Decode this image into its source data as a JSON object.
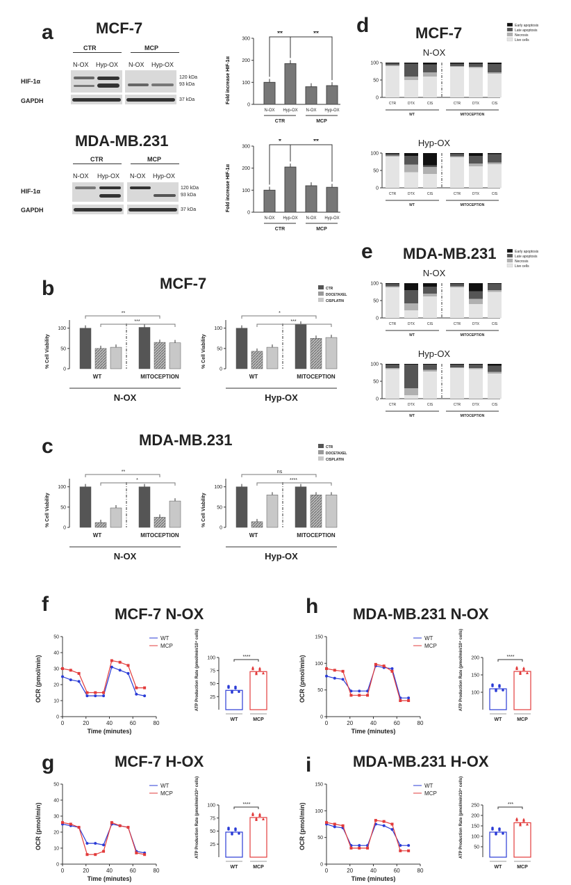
{
  "a": {
    "label": "a",
    "mcf7_title": "MCF-7",
    "mda_title": "MDA-MB.231",
    "ctr": "CTR",
    "mcp": "MCP",
    "lanes": [
      "N-OX",
      "Hyp-OX",
      "N-OX",
      "Hyp-OX"
    ],
    "hif": "HIF-1α",
    "gapdh": "GAPDH",
    "kda120": "120 kDa",
    "kda93": "93 kDa",
    "kda37": "37 kDa",
    "fold_ylabel": "Fold increase HIF-1α",
    "bar_x": [
      "N-OX",
      "Hyp-OX",
      "N-OX",
      "Hyp-OX"
    ],
    "sig_mcf7": [
      "**",
      "**"
    ],
    "sig_mda": [
      "*",
      "**"
    ]
  },
  "b": {
    "label": "b",
    "title": "MCF-7",
    "nox": "N-OX",
    "hypox": "Hyp-OX",
    "wt": "WT",
    "mito": "MITOCEPTION",
    "ylabel": "% Cell Viability",
    "legend": [
      "CTR",
      "DOCETAXEL",
      "CISPLATIN"
    ],
    "sig_nox": [
      "**",
      "***"
    ],
    "sig_hypox": [
      "*",
      "***"
    ]
  },
  "c": {
    "label": "c",
    "title": "MDA-MB.231",
    "nox": "N-OX",
    "hypox": "Hyp-OX",
    "wt": "WT",
    "mito": "MITOCEPTION",
    "ylabel": "% Cell Viability",
    "legend": [
      "CTR",
      "DOCETAXEL",
      "CISPLATIN"
    ],
    "sig_nox": [
      "**",
      "*"
    ],
    "sig_hypox": [
      "ns",
      "****"
    ]
  },
  "d": {
    "label": "d",
    "title": "MCF-7",
    "nox": "N-OX",
    "hypox": "Hyp-OX",
    "legend": [
      "Early apoptosis",
      "Late apoptosis",
      "Necrosis",
      "Live cells"
    ],
    "cats": [
      "CTR",
      "DTX",
      "CIS",
      "CTR",
      "DTX",
      "CIS"
    ],
    "wt": "WT",
    "mito": "MITOCEPTION"
  },
  "e": {
    "label": "e",
    "title": "MDA-MB.231",
    "nox": "N-OX",
    "hypox": "Hyp-OX",
    "legend": [
      "Early apoptosis",
      "Late apoptosis",
      "Necrosis",
      "Live cells"
    ],
    "cats": [
      "CTR",
      "DTX",
      "CIS",
      "CTR",
      "DTX",
      "CIS"
    ],
    "wt": "WT",
    "mito": "MITOCEPTION"
  },
  "f": {
    "label": "f",
    "title": "MCF-7 N-OX"
  },
  "g": {
    "label": "g",
    "title": "MCF-7 H-OX"
  },
  "h": {
    "label": "h",
    "title": "MDA-MB.231 N-OX"
  },
  "i": {
    "label": "i",
    "title": "MDA-MB.231 H-OX"
  },
  "ocr": {
    "ylabel": "OCR (pmol/min)",
    "xlabel": "Time (minutes)",
    "legend": [
      "WT",
      "MCP"
    ],
    "atp_ylabel": "ATP Production Rate (pmol/min/10⁴ cells)",
    "atp_x": [
      "WT",
      "MCP"
    ]
  },
  "colors": {
    "wt": "#2a3bd6",
    "mcp": "#e23b3b",
    "dark": "#555555",
    "mid": "#8c8c8c",
    "light": "#c8c8c8"
  },
  "chart_data": [
    {
      "id": "a-mcf7",
      "type": "bar",
      "categories": [
        "N-OX",
        "Hyp-OX",
        "N-OX",
        "Hyp-OX"
      ],
      "values": [
        100,
        185,
        80,
        85
      ],
      "ylim": [
        0,
        300
      ],
      "yticks": [
        0,
        100,
        200,
        300
      ],
      "groups": [
        "CTR",
        "MCP"
      ]
    },
    {
      "id": "a-mda",
      "type": "bar",
      "categories": [
        "N-OX",
        "Hyp-OX",
        "N-OX",
        "Hyp-OX"
      ],
      "values": [
        100,
        205,
        120,
        113
      ],
      "ylim": [
        0,
        300
      ],
      "yticks": [
        0,
        100,
        200,
        300
      ],
      "groups": [
        "CTR",
        "MCP"
      ]
    },
    {
      "id": "b-nox",
      "type": "bar",
      "groups": [
        "WT",
        "MITOCEPTION"
      ],
      "series": [
        {
          "name": "CTR",
          "values": [
            100,
            102
          ]
        },
        {
          "name": "DOCETAXEL",
          "values": [
            50,
            65
          ]
        },
        {
          "name": "CISPLATIN",
          "values": [
            53,
            64
          ]
        }
      ],
      "ylim": [
        0,
        120
      ],
      "yticks": [
        0,
        50,
        100
      ]
    },
    {
      "id": "b-hypox",
      "type": "bar",
      "groups": [
        "WT",
        "MITOCEPTION"
      ],
      "series": [
        {
          "name": "CTR",
          "values": [
            100,
            110
          ]
        },
        {
          "name": "DOCETAXEL",
          "values": [
            43,
            75
          ]
        },
        {
          "name": "CISPLATIN",
          "values": [
            53,
            77
          ]
        }
      ],
      "ylim": [
        0,
        120
      ],
      "yticks": [
        0,
        50,
        100
      ]
    },
    {
      "id": "c-nox",
      "type": "bar",
      "groups": [
        "WT",
        "MITOCEPTION"
      ],
      "series": [
        {
          "name": "CTR",
          "values": [
            100,
            100
          ]
        },
        {
          "name": "DOCETAXEL",
          "values": [
            12,
            25
          ]
        },
        {
          "name": "CISPLATIN",
          "values": [
            48,
            65
          ]
        }
      ],
      "ylim": [
        0,
        120
      ],
      "yticks": [
        0,
        50,
        100
      ]
    },
    {
      "id": "c-hypox",
      "type": "bar",
      "groups": [
        "WT",
        "MITOCEPTION"
      ],
      "series": [
        {
          "name": "CTR",
          "values": [
            100,
            100
          ]
        },
        {
          "name": "DOCETAXEL",
          "values": [
            14,
            80
          ]
        },
        {
          "name": "CISPLATIN",
          "values": [
            80,
            80
          ]
        }
      ],
      "ylim": [
        0,
        120
      ],
      "yticks": [
        0,
        50,
        100
      ]
    },
    {
      "id": "d-nox",
      "type": "stacked-bar",
      "categories": [
        "CTR",
        "DTX",
        "CIS",
        "CTR",
        "DTX",
        "CIS"
      ],
      "series": [
        {
          "name": "Live cells",
          "values": [
            90,
            50,
            60,
            88,
            85,
            68
          ]
        },
        {
          "name": "Necrosis",
          "values": [
            3,
            10,
            12,
            2,
            3,
            4
          ]
        },
        {
          "name": "Late apoptosis",
          "values": [
            5,
            37,
            23,
            7,
            9,
            24
          ]
        },
        {
          "name": "Early apoptosis",
          "values": [
            2,
            3,
            5,
            3,
            3,
            4
          ]
        }
      ],
      "ylim": [
        0,
        100
      ],
      "yticks": [
        0,
        50,
        100
      ]
    },
    {
      "id": "d-hypox",
      "type": "stacked-bar",
      "categories": [
        "CTR",
        "DTX",
        "CIS",
        "CTR",
        "DTX",
        "CIS"
      ],
      "series": [
        {
          "name": "Live cells",
          "values": [
            90,
            45,
            40,
            88,
            62,
            68
          ]
        },
        {
          "name": "Necrosis",
          "values": [
            3,
            22,
            20,
            3,
            8,
            5
          ]
        },
        {
          "name": "Late apoptosis",
          "values": [
            5,
            25,
            5,
            7,
            22,
            24
          ]
        },
        {
          "name": "Early apoptosis",
          "values": [
            2,
            8,
            35,
            2,
            8,
            3
          ]
        }
      ],
      "ylim": [
        0,
        100
      ],
      "yticks": [
        0,
        50,
        100
      ]
    },
    {
      "id": "e-nox",
      "type": "stacked-bar",
      "categories": [
        "CTR",
        "DTX",
        "CIS",
        "CTR",
        "DTX",
        "CIS"
      ],
      "series": [
        {
          "name": "Live cells",
          "values": [
            88,
            22,
            62,
            88,
            40,
            75
          ]
        },
        {
          "name": "Necrosis",
          "values": [
            3,
            20,
            8,
            3,
            15,
            5
          ]
        },
        {
          "name": "Late apoptosis",
          "values": [
            7,
            38,
            20,
            7,
            22,
            18
          ]
        },
        {
          "name": "Early apoptosis",
          "values": [
            2,
            20,
            10,
            2,
            23,
            2
          ]
        }
      ],
      "ylim": [
        0,
        100
      ],
      "yticks": [
        0,
        50,
        100
      ]
    },
    {
      "id": "e-hypox",
      "type": "stacked-bar",
      "categories": [
        "CTR",
        "DTX",
        "CIS",
        "CTR",
        "DTX",
        "CIS"
      ],
      "series": [
        {
          "name": "Live cells",
          "values": [
            85,
            10,
            78,
            88,
            85,
            72
          ]
        },
        {
          "name": "Necrosis",
          "values": [
            3,
            20,
            5,
            2,
            3,
            5
          ]
        },
        {
          "name": "Late apoptosis",
          "values": [
            10,
            68,
            15,
            8,
            10,
            18
          ]
        },
        {
          "name": "Early apoptosis",
          "values": [
            2,
            2,
            2,
            2,
            2,
            5
          ]
        }
      ],
      "ylim": [
        0,
        100
      ],
      "yticks": [
        0,
        50,
        100
      ]
    },
    {
      "id": "f-ocr",
      "type": "line",
      "x": [
        0,
        7,
        14,
        21,
        28,
        35,
        42,
        49,
        56,
        63,
        70
      ],
      "ylim": [
        0,
        50
      ],
      "yticks": [
        0,
        10,
        20,
        30,
        40,
        50
      ],
      "xlim": [
        0,
        80
      ],
      "xticks": [
        0,
        20,
        40,
        60,
        80
      ],
      "series": [
        {
          "name": "WT",
          "values": [
            25,
            23,
            22,
            13,
            13,
            13,
            31,
            29,
            27,
            14,
            13
          ]
        },
        {
          "name": "MCP",
          "values": [
            30,
            29,
            27,
            15,
            15,
            15,
            35,
            34,
            32,
            18,
            18
          ]
        }
      ]
    },
    {
      "id": "f-atp",
      "type": "scatter-bar",
      "categories": [
        "WT",
        "MCP"
      ],
      "values": [
        37,
        73
      ],
      "ylim": [
        0,
        100
      ],
      "yticks": [
        25,
        50,
        75,
        100
      ],
      "sig": "****"
    },
    {
      "id": "g-ocr",
      "type": "line",
      "x": [
        0,
        7,
        14,
        21,
        28,
        35,
        42,
        49,
        56,
        63,
        70
      ],
      "ylim": [
        0,
        50
      ],
      "yticks": [
        0,
        10,
        20,
        30,
        40,
        50
      ],
      "xlim": [
        0,
        80
      ],
      "xticks": [
        0,
        20,
        40,
        60,
        80
      ],
      "series": [
        {
          "name": "WT",
          "values": [
            25,
            24,
            23,
            13,
            13,
            12,
            25,
            24,
            23,
            8,
            7
          ]
        },
        {
          "name": "MCP",
          "values": [
            26,
            25,
            23,
            6,
            6,
            8,
            26,
            24,
            23,
            7,
            6
          ]
        }
      ]
    },
    {
      "id": "g-atp",
      "type": "scatter-bar",
      "categories": [
        "WT",
        "MCP"
      ],
      "values": [
        48,
        76
      ],
      "ylim": [
        0,
        100
      ],
      "yticks": [
        25,
        50,
        75,
        100
      ],
      "sig": "****"
    },
    {
      "id": "h-ocr",
      "type": "line",
      "x": [
        0,
        7,
        14,
        21,
        28,
        35,
        42,
        49,
        56,
        63,
        70
      ],
      "ylim": [
        0,
        150
      ],
      "yticks": [
        0,
        50,
        100,
        150
      ],
      "xlim": [
        0,
        80
      ],
      "xticks": [
        0,
        20,
        40,
        60,
        80
      ],
      "series": [
        {
          "name": "WT",
          "values": [
            76,
            72,
            70,
            48,
            48,
            48,
            95,
            92,
            90,
            35,
            35
          ]
        },
        {
          "name": "MCP",
          "values": [
            90,
            87,
            85,
            40,
            40,
            40,
            98,
            95,
            85,
            30,
            30
          ]
        }
      ]
    },
    {
      "id": "h-atp",
      "type": "scatter-bar",
      "categories": [
        "WT",
        "MCP"
      ],
      "values": [
        110,
        160
      ],
      "ylim": [
        0,
        200
      ],
      "yticks": [
        100,
        150,
        200
      ],
      "sig": "****"
    },
    {
      "id": "i-ocr",
      "type": "line",
      "x": [
        0,
        7,
        14,
        21,
        28,
        35,
        42,
        49,
        56,
        63,
        70
      ],
      "ylim": [
        0,
        150
      ],
      "yticks": [
        0,
        50,
        100,
        150
      ],
      "xlim": [
        0,
        80
      ],
      "xticks": [
        0,
        20,
        40,
        60,
        80
      ],
      "series": [
        {
          "name": "WT",
          "values": [
            75,
            70,
            68,
            35,
            35,
            35,
            75,
            72,
            65,
            35,
            35
          ]
        },
        {
          "name": "MCP",
          "values": [
            78,
            75,
            72,
            30,
            30,
            30,
            82,
            80,
            75,
            25,
            25
          ]
        }
      ]
    },
    {
      "id": "i-atp",
      "type": "scatter-bar",
      "categories": [
        "WT",
        "MCP"
      ],
      "values": [
        120,
        165
      ],
      "ylim": [
        0,
        250
      ],
      "yticks": [
        50,
        100,
        150,
        200,
        250
      ],
      "sig": "***"
    }
  ]
}
